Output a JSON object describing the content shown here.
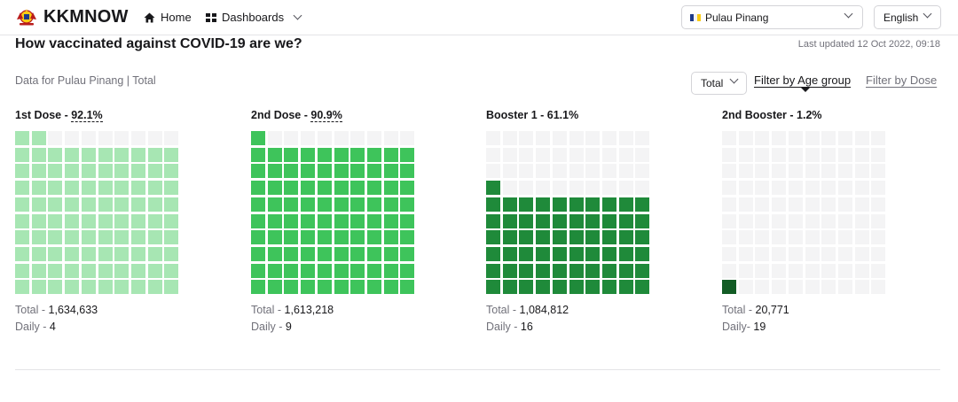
{
  "header": {
    "brand": "KKMNOW",
    "nav": {
      "home_label": "Home",
      "dashboards_label": "Dashboards"
    },
    "state_select": {
      "value": "Pulau Pinang"
    },
    "language_select": {
      "value": "English"
    }
  },
  "main": {
    "title": "How vaccinated against COVID-19 are we?",
    "last_updated": "Last updated 12 Oct 2022, 09:18",
    "subtitle": "Data for Pulau Pinang | Total",
    "filters": {
      "total_select": {
        "value": "Total"
      },
      "filter_age_label": "Filter by Age group",
      "filter_dose_label": "Filter by Dose"
    },
    "doses": [
      {
        "label": "1st Dose - ",
        "percent_label": "92.1%",
        "percent": 92.1,
        "total_label": "Total - ",
        "total_value": "1,634,633",
        "daily_label": "Daily - ",
        "daily_value": "4",
        "color": "#a7e6b3",
        "empty_color": "#f4f4f5",
        "dashed": true
      },
      {
        "label": "2nd Dose - ",
        "percent_label": "90.9%",
        "percent": 90.9,
        "total_label": "Total - ",
        "total_value": "1,613,218",
        "daily_label": "Daily - ",
        "daily_value": "9",
        "color": "#3ec45b",
        "empty_color": "#f4f4f5",
        "dashed": true
      },
      {
        "label": "Booster 1 - ",
        "percent_label": "61.1%",
        "percent": 61.1,
        "total_label": "Total - ",
        "total_value": "1,084,812",
        "daily_label": "Daily - ",
        "daily_value": "16",
        "color": "#1f8a3a",
        "empty_color": "#f4f4f5",
        "dashed": false
      },
      {
        "label": "2nd Booster - ",
        "percent_label": "1.2%",
        "percent": 1.2,
        "total_label": "Total - ",
        "total_value": "20,771",
        "daily_label": "Daily- ",
        "daily_value": "19",
        "color": "#135c25",
        "empty_color": "#f4f4f5",
        "dashed": false
      }
    ]
  }
}
